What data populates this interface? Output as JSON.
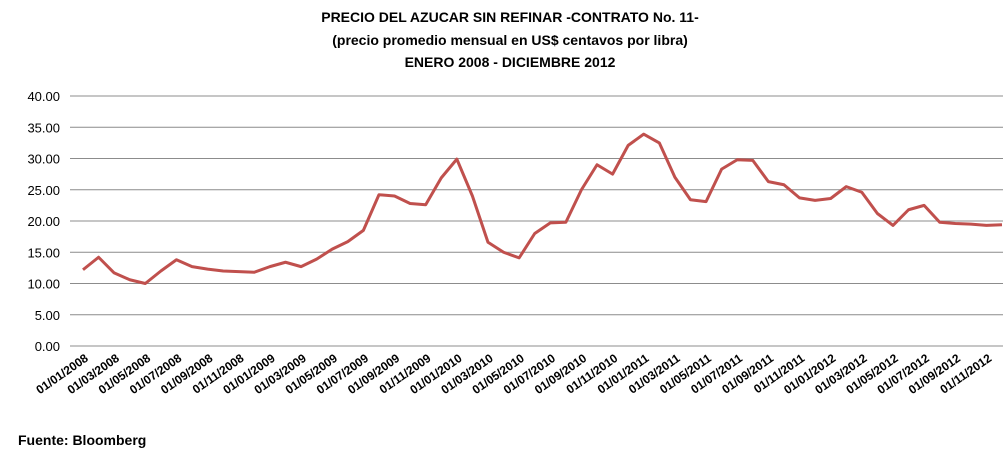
{
  "chart_data": {
    "type": "line",
    "title": "PRECIO DEL AZUCAR SIN REFINAR -CONTRATO No. 11-",
    "subtitle": "(precio promedio mensual en US$ centavos por libra)",
    "period": "ENERO 2008 - DICIEMBRE 2012",
    "source": "Fuente:  Bloomberg",
    "categories": [
      "01/01/2008",
      null,
      "01/03/2008",
      null,
      "01/05/2008",
      null,
      "01/07/2008",
      null,
      "01/09/2008",
      null,
      "01/11/2008",
      null,
      "01/01/2009",
      null,
      "01/03/2009",
      null,
      "01/05/2009",
      null,
      "01/07/2009",
      null,
      "01/09/2009",
      null,
      "01/11/2009",
      null,
      "01/01/2010",
      null,
      "01/03/2010",
      null,
      "01/05/2010",
      null,
      "01/07/2010",
      null,
      "01/09/2010",
      null,
      "01/11/2010",
      null,
      "01/01/2011",
      null,
      "01/03/2011",
      null,
      "01/05/2011",
      null,
      "01/07/2011",
      null,
      "01/09/2011",
      null,
      "01/11/2011",
      null,
      "01/01/2012",
      null,
      "01/03/2012",
      null,
      "01/05/2012",
      null,
      "01/07/2012",
      null,
      "01/09/2012",
      null,
      "01/11/2012",
      null
    ],
    "series": [
      {
        "color": "#c0504d",
        "values": [
          12.2,
          14.2,
          11.7,
          10.6,
          10.0,
          12.0,
          13.8,
          12.7,
          12.3,
          12.0,
          11.9,
          11.8,
          12.7,
          13.4,
          12.7,
          13.9,
          15.5,
          16.7,
          18.5,
          24.2,
          24.0,
          22.8,
          22.6,
          26.9,
          29.9,
          24.0,
          16.6,
          15.0,
          14.1,
          18.0,
          19.7,
          19.8,
          25.0,
          29.0,
          27.5,
          32.1,
          33.9,
          32.5,
          27.0,
          23.4,
          23.1,
          28.3,
          29.8,
          29.7,
          26.3,
          25.8,
          23.7,
          23.3,
          23.6,
          25.5,
          24.6,
          21.2,
          19.3,
          21.8,
          22.5,
          19.8,
          19.6,
          19.5,
          19.3,
          19.4
        ]
      }
    ],
    "ylim": [
      0,
      40
    ],
    "yticks": [
      {
        "value": 0,
        "label": "0.00"
      },
      {
        "value": 5,
        "label": "5.00"
      },
      {
        "value": 10,
        "label": "10.00"
      },
      {
        "value": 15,
        "label": "15.00"
      },
      {
        "value": 20,
        "label": "20.00"
      },
      {
        "value": 25,
        "label": "25.00"
      },
      {
        "value": 30,
        "label": "30.00"
      },
      {
        "value": 35,
        "label": "35.00"
      },
      {
        "value": 40,
        "label": "40.00"
      }
    ],
    "grid": true
  }
}
